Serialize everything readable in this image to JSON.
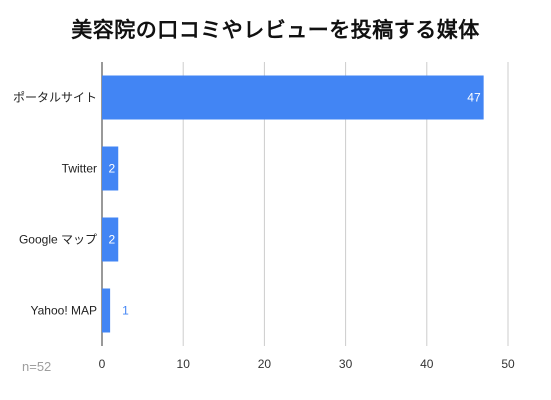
{
  "chart_data": {
    "type": "bar",
    "orientation": "horizontal",
    "title": "美容院の口コミやレビューを投稿する媒体",
    "categories": [
      "ポータルサイト",
      "Twitter",
      "Google マップ",
      "Yahoo! MAP"
    ],
    "values": [
      47,
      2,
      2,
      1
    ],
    "xlim": [
      0,
      50
    ],
    "xticks": [
      0,
      10,
      20,
      30,
      40,
      50
    ],
    "grid": true,
    "legend": "none",
    "note": "n=52",
    "bar_color": "#4285f4",
    "inside_label_color": "#ffffff",
    "outside_label_color": "#4285f4"
  }
}
